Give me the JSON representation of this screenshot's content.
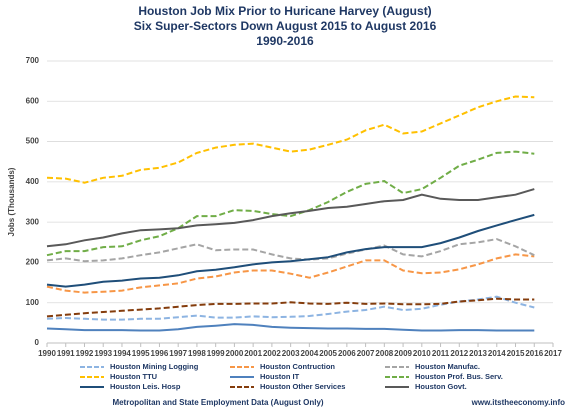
{
  "chart_data": {
    "type": "line",
    "title": [
      "Houston Job Mix Prior to Huricane Harvey (August)",
      "Six Super-Sectors Down August 2015 to August 2016",
      "1990-2016"
    ],
    "ylabel": "Jobs (Thousands)",
    "xlabel": "Metropolitan and State Employment Data (August Only)",
    "source": "www.itstheeconomy.info",
    "x": [
      1990,
      1991,
      1992,
      1993,
      1994,
      1995,
      1996,
      1997,
      1998,
      1999,
      2000,
      2001,
      2002,
      2003,
      2004,
      2005,
      2006,
      2007,
      2008,
      2009,
      2010,
      2011,
      2012,
      2013,
      2014,
      2015,
      2016
    ],
    "xlim": [
      1990,
      2017
    ],
    "xticks": [
      1990,
      1991,
      1992,
      1993,
      1994,
      1995,
      1996,
      1997,
      1998,
      1999,
      2000,
      2001,
      2002,
      2003,
      2004,
      2005,
      2006,
      2007,
      2008,
      2009,
      2010,
      2011,
      2012,
      2013,
      2014,
      2015,
      2016,
      2017
    ],
    "ylim": [
      0,
      700
    ],
    "yticks": [
      0,
      100,
      200,
      300,
      400,
      500,
      600,
      700
    ],
    "grid": true,
    "series": [
      {
        "name": "Houston Mining Logging",
        "color": "#8db4e2",
        "dashed": true,
        "values": [
          60,
          62,
          60,
          58,
          58,
          60,
          60,
          64,
          68,
          63,
          63,
          66,
          64,
          65,
          67,
          72,
          78,
          82,
          90,
          82,
          85,
          95,
          103,
          108,
          115,
          100,
          88
        ]
      },
      {
        "name": "Houston Contruction",
        "color": "#f79646",
        "dashed": true,
        "values": [
          140,
          130,
          125,
          127,
          130,
          138,
          143,
          148,
          160,
          165,
          175,
          180,
          180,
          172,
          162,
          175,
          190,
          205,
          205,
          180,
          173,
          175,
          183,
          195,
          210,
          220,
          215
        ]
      },
      {
        "name": "Houston Manufac.",
        "color": "#a5a5a5",
        "dashed": true,
        "values": [
          205,
          210,
          203,
          205,
          210,
          218,
          225,
          235,
          245,
          230,
          232,
          232,
          220,
          210,
          207,
          210,
          222,
          232,
          242,
          220,
          215,
          228,
          245,
          250,
          258,
          240,
          218
        ]
      },
      {
        "name": "Houston TTU",
        "color": "#ffc000",
        "dashed": true,
        "values": [
          410,
          408,
          398,
          410,
          415,
          430,
          435,
          448,
          472,
          485,
          492,
          495,
          485,
          475,
          480,
          492,
          505,
          528,
          542,
          520,
          525,
          545,
          565,
          585,
          600,
          612,
          610
        ]
      },
      {
        "name": "Houston IT",
        "color": "#4f81bd",
        "dashed": false,
        "values": [
          36,
          34,
          32,
          32,
          32,
          31,
          31,
          34,
          40,
          43,
          47,
          45,
          40,
          38,
          37,
          36,
          36,
          35,
          35,
          33,
          31,
          31,
          32,
          32,
          31,
          31,
          31
        ]
      },
      {
        "name": "Houston Prof. Bus. Serv.",
        "color": "#70ad47",
        "dashed": true,
        "values": [
          218,
          228,
          228,
          238,
          240,
          255,
          265,
          285,
          315,
          315,
          330,
          328,
          320,
          315,
          330,
          350,
          375,
          395,
          402,
          372,
          382,
          410,
          440,
          455,
          472,
          475,
          470
        ]
      },
      {
        "name": "Houston Leis. Hosp",
        "color": "#1f4e79",
        "dashed": false,
        "values": [
          145,
          140,
          145,
          152,
          155,
          160,
          162,
          168,
          178,
          182,
          188,
          195,
          200,
          203,
          208,
          213,
          225,
          233,
          238,
          238,
          238,
          248,
          262,
          278,
          292,
          305,
          318
        ]
      },
      {
        "name": "Houston Other Services",
        "color": "#843c0c",
        "dashed": true,
        "values": [
          66,
          70,
          74,
          77,
          80,
          83,
          86,
          90,
          94,
          97,
          97,
          98,
          98,
          101,
          98,
          97,
          100,
          97,
          98,
          96,
          96,
          97,
          103,
          106,
          110,
          108,
          108
        ]
      },
      {
        "name": "Houston Govt.",
        "color": "#595959",
        "dashed": false,
        "values": [
          240,
          245,
          255,
          262,
          272,
          280,
          282,
          285,
          292,
          295,
          298,
          305,
          315,
          322,
          328,
          335,
          338,
          345,
          352,
          355,
          368,
          358,
          355,
          355,
          362,
          368,
          382
        ]
      }
    ]
  }
}
